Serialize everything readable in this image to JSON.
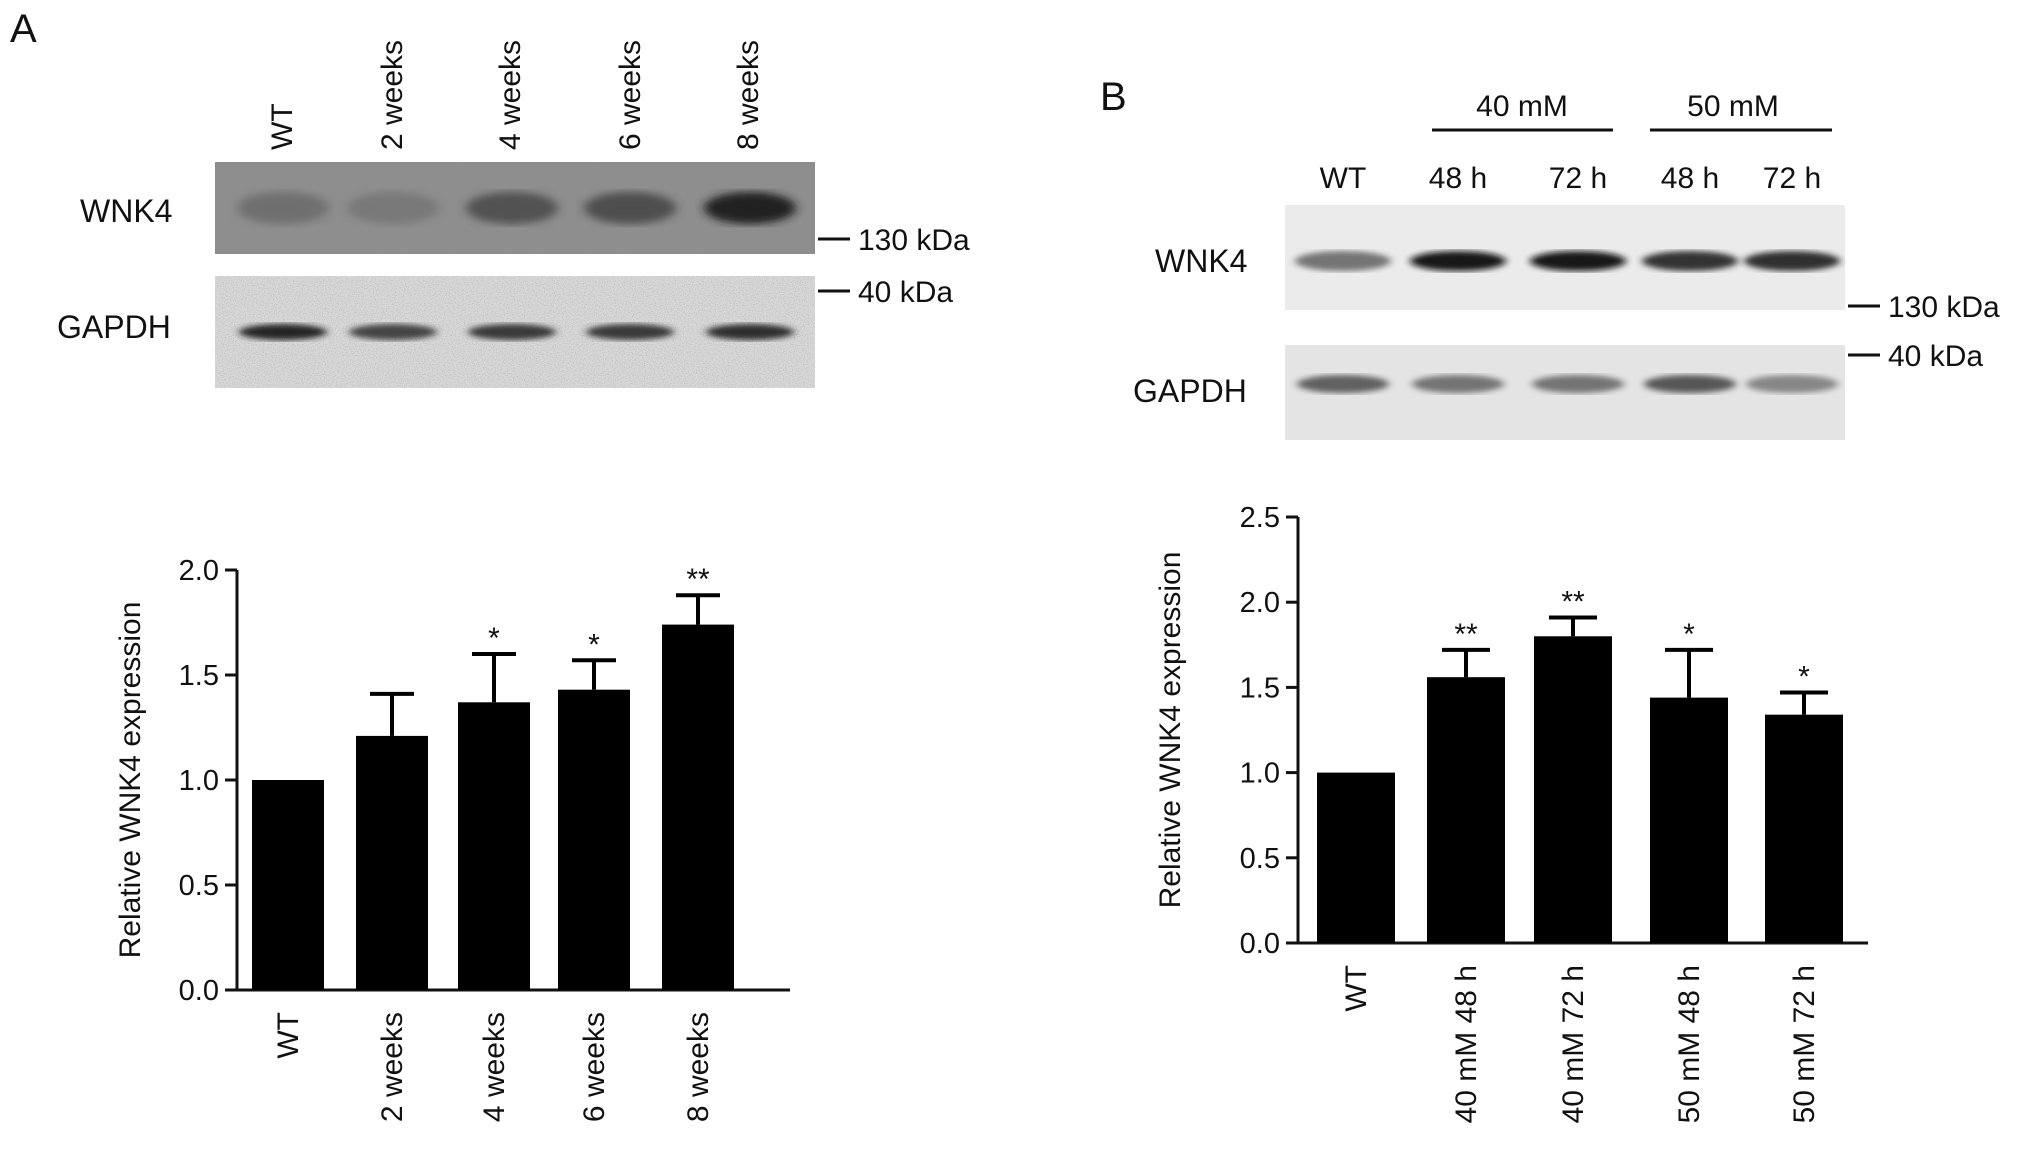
{
  "panel_a": {
    "letter": "A",
    "lane_labels": [
      "WT",
      "2 weeks",
      "4 weeks",
      "6 weeks",
      "8 weeks"
    ],
    "band_labels": [
      "WNK4",
      "GAPDH"
    ],
    "band_darkness": {
      "WNK4": [
        0.45,
        0.4,
        0.6,
        0.62,
        0.85
      ],
      "GAPDH": [
        0.85,
        0.7,
        0.75,
        0.75,
        0.8
      ]
    },
    "markers": [
      "130 kDa",
      "40 kDa"
    ]
  },
  "panel_b": {
    "letter": "B",
    "group_headers": [
      "40 mM",
      "50 mM"
    ],
    "lane_labels": [
      "WT",
      "48 h",
      "72 h",
      "48 h",
      "72 h"
    ],
    "band_labels": [
      "WNK4",
      "GAPDH"
    ],
    "band_darkness": {
      "WNK4": [
        0.45,
        0.92,
        0.95,
        0.78,
        0.8
      ],
      "GAPDH": [
        0.55,
        0.45,
        0.45,
        0.6,
        0.35
      ]
    },
    "markers": [
      "130 kDa",
      "40 kDa"
    ]
  },
  "chart_data": [
    {
      "type": "bar",
      "categories": [
        "WT",
        "2 weeks",
        "4 weeks",
        "6 weeks",
        "8 weeks"
      ],
      "values": [
        1.0,
        1.21,
        1.37,
        1.43,
        1.74
      ],
      "error": [
        0,
        0.2,
        0.23,
        0.14,
        0.14
      ],
      "significance": [
        "",
        "",
        "*",
        "*",
        "**"
      ],
      "ylabel": "Relative WNK4 expression",
      "yticks": [
        "0.0",
        "0.5",
        "1.0",
        "1.5",
        "2.0"
      ],
      "ylim": [
        0,
        2.0
      ],
      "colors": {
        "bar": "#000000"
      }
    },
    {
      "type": "bar",
      "categories": [
        "WT",
        "40 mM 48 h",
        "40 mM 72 h",
        "50 mM 48 h",
        "50 mM 72 h"
      ],
      "values": [
        1.0,
        1.56,
        1.8,
        1.44,
        1.34
      ],
      "error": [
        0,
        0.16,
        0.11,
        0.28,
        0.13
      ],
      "significance": [
        "",
        "**",
        "**",
        "*",
        "*"
      ],
      "ylabel": "Relative WNK4 expression",
      "yticks": [
        "0.0",
        "0.5",
        "1.0",
        "1.5",
        "2.0",
        "2.5"
      ],
      "ylim": [
        0,
        2.5
      ],
      "colors": {
        "bar": "#000000"
      }
    }
  ]
}
